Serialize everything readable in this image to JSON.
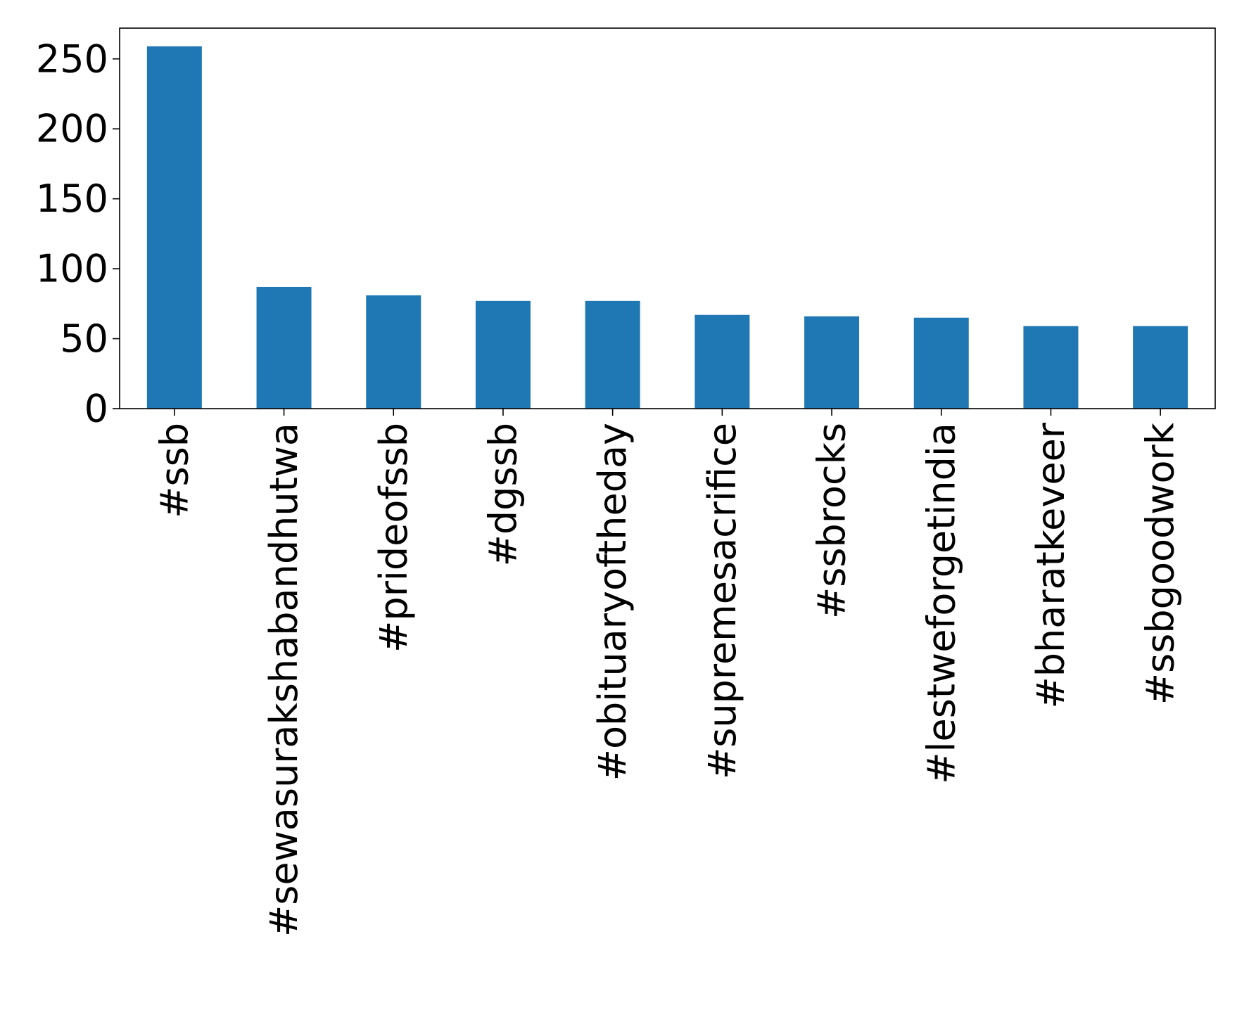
{
  "chart_data": {
    "type": "bar",
    "title": "",
    "xlabel": "",
    "ylabel": "",
    "categories": [
      "#ssb",
      "#sewasurakshabandhutwa",
      "#prideofssb",
      "#dgssb",
      "#obituaryoftheday",
      "#supremesacrifice",
      "#ssbrocks",
      "#lestweforgetindia",
      "#bharatkeveer",
      "#ssbgoodwork"
    ],
    "values": [
      259,
      87,
      81,
      77,
      77,
      67,
      66,
      65,
      59,
      59
    ],
    "ylim": [
      0,
      272
    ],
    "yticks": [
      0,
      50,
      100,
      150,
      200,
      250
    ],
    "grid": false,
    "legend": "none",
    "bar_color": "#1f77b4"
  }
}
